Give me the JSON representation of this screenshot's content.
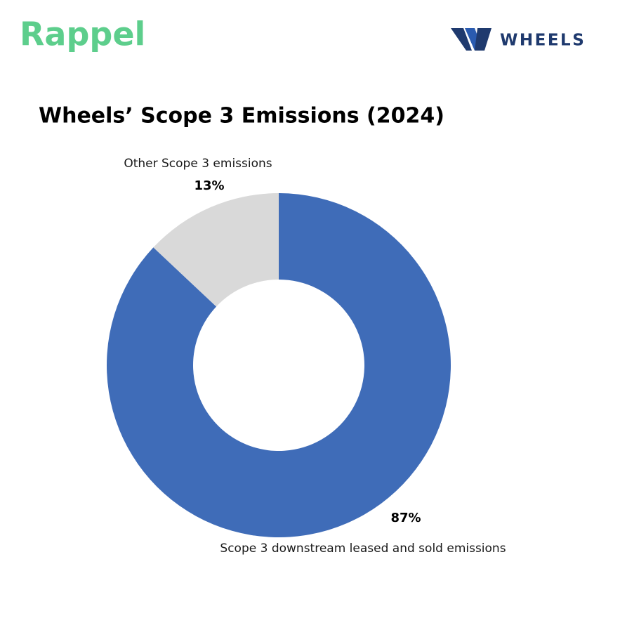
{
  "brand": {
    "left": "Rappel",
    "right": "WHEELS"
  },
  "chart_data": {
    "type": "donut",
    "title": "Wheels’ Scope 3 Emissions (2024)",
    "categories": [
      "Scope 3 downstream leased and sold emissions",
      "Other Scope 3 emissions"
    ],
    "values": [
      87,
      13
    ],
    "value_labels": [
      "87%",
      "13%"
    ],
    "colors": [
      "#3f6cb8",
      "#d9d9d9"
    ]
  }
}
